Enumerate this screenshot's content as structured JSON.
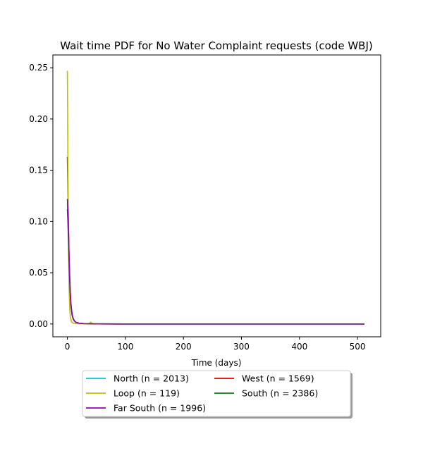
{
  "chart_data": {
    "type": "line",
    "title": "Wait time PDF for No Water Complaint  requests (code WBJ)",
    "xlabel": "Time (days)",
    "ylabel": "",
    "xlim": [
      -25,
      540
    ],
    "ylim": [
      -0.0125,
      0.2625
    ],
    "xticks": [
      0,
      100,
      200,
      300,
      400,
      500
    ],
    "yticks": [
      0.0,
      0.05,
      0.1,
      0.15,
      0.2,
      0.25
    ],
    "ytick_labels": [
      "0.00",
      "0.05",
      "0.10",
      "0.15",
      "0.20",
      "0.25"
    ],
    "grid": false,
    "legend_position": "below-center",
    "series": [
      {
        "name": "North (n = 2013)",
        "color": "#17becf",
        "x": [
          0,
          1,
          2,
          3,
          4,
          5,
          6,
          8,
          10,
          12,
          15,
          20,
          30,
          50,
          100,
          200,
          300,
          400,
          512
        ],
        "y": [
          0.118,
          0.104,
          0.082,
          0.06,
          0.042,
          0.028,
          0.018,
          0.009,
          0.005,
          0.003,
          0.0015,
          0.0007,
          0.0003,
          0.0001,
          0,
          0,
          0,
          0,
          0
        ]
      },
      {
        "name": "West (n = 1569)",
        "color": "#e00000",
        "x": [
          0,
          1,
          2,
          3,
          4,
          5,
          6,
          8,
          10,
          12,
          15,
          20,
          30,
          50,
          100,
          200,
          300,
          400,
          512
        ],
        "y": [
          0.163,
          0.13,
          0.095,
          0.065,
          0.044,
          0.029,
          0.019,
          0.009,
          0.005,
          0.003,
          0.0015,
          0.0007,
          0.0003,
          0.0001,
          0,
          0,
          0,
          0,
          0
        ]
      },
      {
        "name": "Loop (n = 119)",
        "color": "#bfbf00",
        "x": [
          0,
          1,
          2,
          3,
          4,
          5,
          7,
          10,
          15,
          20,
          30,
          38,
          40,
          42,
          45,
          60,
          100,
          200,
          300,
          400,
          512
        ],
        "y": [
          0.247,
          0.15,
          0.075,
          0.035,
          0.015,
          0.007,
          0.002,
          0.0008,
          0.0003,
          0.0002,
          0.0002,
          0.0005,
          0.0018,
          0.0008,
          0.0002,
          0.0001,
          0,
          0,
          0,
          0,
          0
        ]
      },
      {
        "name": "South (n = 2386)",
        "color": "#008000",
        "x": [
          0,
          1,
          2,
          3,
          4,
          5,
          6,
          8,
          10,
          12,
          15,
          20,
          30,
          50,
          100,
          200,
          300,
          400,
          512
        ],
        "y": [
          0.112,
          0.098,
          0.078,
          0.058,
          0.041,
          0.028,
          0.019,
          0.009,
          0.005,
          0.003,
          0.0016,
          0.0008,
          0.0003,
          0.0001,
          0,
          0,
          0,
          0,
          0
        ]
      },
      {
        "name": "Far South (n = 1996)",
        "color": "#9400bf",
        "x": [
          0,
          1,
          2,
          3,
          4,
          5,
          6,
          8,
          10,
          12,
          15,
          20,
          30,
          50,
          100,
          200,
          300,
          400,
          512
        ],
        "y": [
          0.122,
          0.108,
          0.087,
          0.065,
          0.046,
          0.032,
          0.021,
          0.01,
          0.0055,
          0.003,
          0.0016,
          0.0008,
          0.0003,
          0.0001,
          0,
          0,
          0,
          0,
          0
        ]
      }
    ]
  }
}
